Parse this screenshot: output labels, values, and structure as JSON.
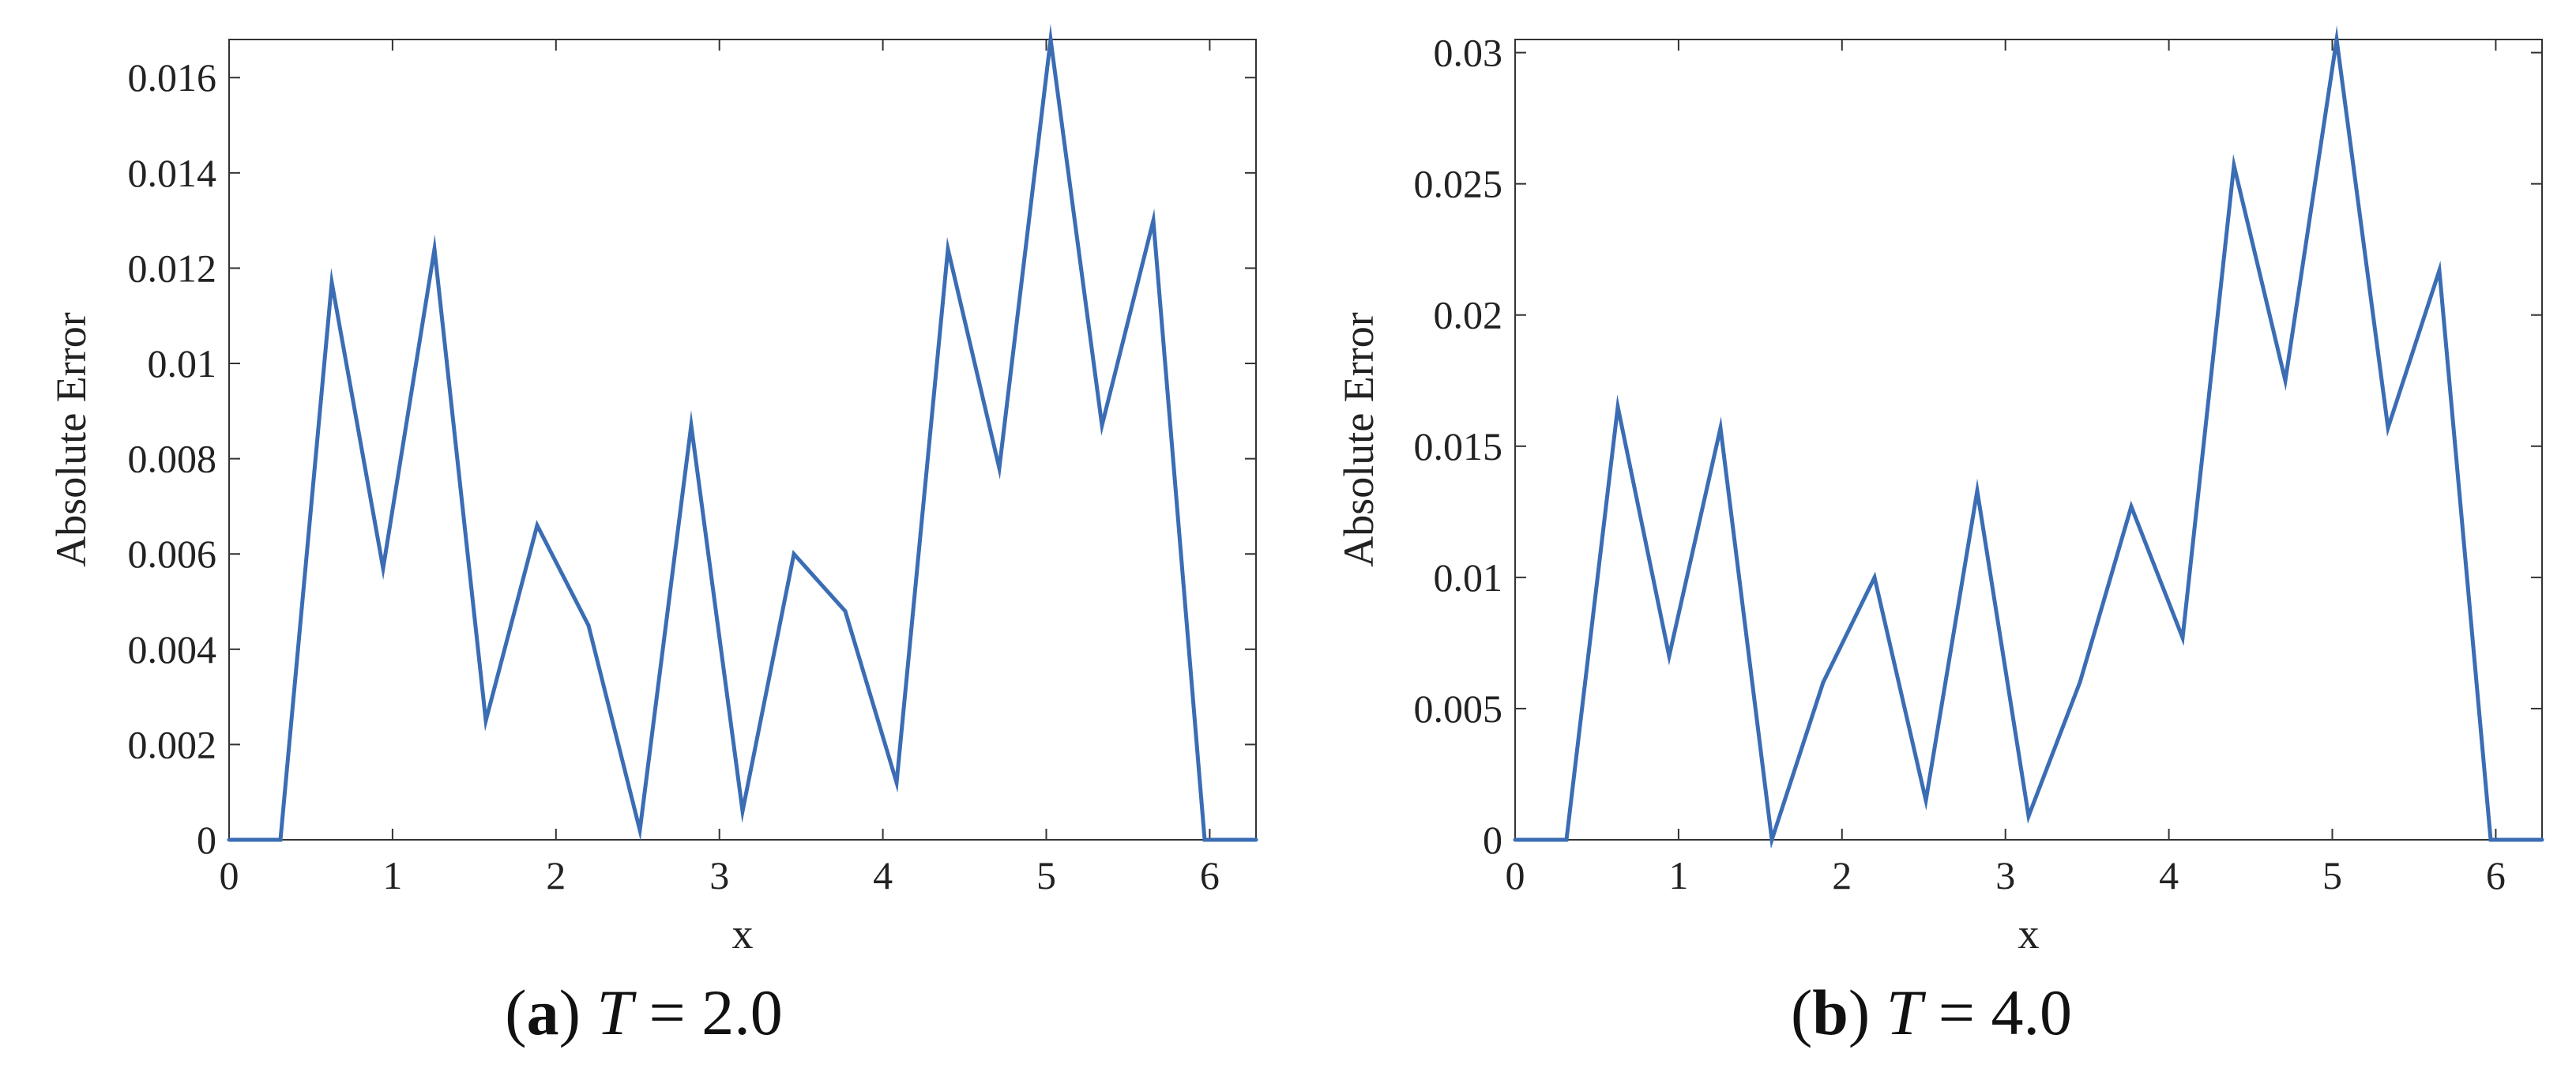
{
  "line_color": "#3b6db4",
  "chart_data": [
    {
      "type": "line",
      "panel_label": "a",
      "caption": "T = 2.0",
      "caption_var": "T",
      "caption_rest": " = 2.0",
      "xlabel": "x",
      "ylabel": "Absolute Error",
      "xlim": [
        0,
        6.2832
      ],
      "ylim": [
        0,
        0.0168
      ],
      "xticks": [
        0,
        1,
        2,
        3,
        4,
        5,
        6
      ],
      "xtick_labels": [
        "0",
        "1",
        "2",
        "3",
        "4",
        "5",
        "6"
      ],
      "yticks": [
        0,
        0.002,
        0.004,
        0.006,
        0.008,
        0.01,
        0.012,
        0.014,
        0.016
      ],
      "ytick_labels": [
        "0",
        "0.002",
        "0.004",
        "0.006",
        "0.008",
        "0.01",
        "0.012",
        "0.014",
        "0.016"
      ],
      "series": [
        {
          "name": "Absolute Error",
          "x": [
            0,
            0.3142,
            0.6283,
            0.9425,
            1.2566,
            1.5708,
            1.885,
            2.1991,
            2.5133,
            2.8274,
            3.1416,
            3.4558,
            3.7699,
            4.0841,
            4.3982,
            4.7124,
            5.0265,
            5.3407,
            5.6549,
            5.969,
            6.2832
          ],
          "y": [
            0,
            0,
            0.0117,
            0.0057,
            0.0124,
            0.0025,
            0.0066,
            0.0045,
            0.0002,
            0.0087,
            0.0006,
            0.006,
            0.0048,
            0.0012,
            0.0124,
            0.0078,
            0.0168,
            0.0087,
            0.013,
            0,
            0
          ]
        }
      ]
    },
    {
      "type": "line",
      "panel_label": "b",
      "caption": "T = 4.0",
      "caption_var": "T",
      "caption_rest": " = 4.0",
      "xlabel": "x",
      "ylabel": "Absolute Error",
      "xlim": [
        0,
        6.2832
      ],
      "ylim": [
        0,
        0.0305
      ],
      "xticks": [
        0,
        1,
        2,
        3,
        4,
        5,
        6
      ],
      "xtick_labels": [
        "0",
        "1",
        "2",
        "3",
        "4",
        "5",
        "6"
      ],
      "yticks": [
        0,
        0.005,
        0.01,
        0.015,
        0.02,
        0.025,
        0.03
      ],
      "ytick_labels": [
        "0",
        "0.005",
        "0.01",
        "0.015",
        "0.02",
        "0.025",
        "0.03"
      ],
      "series": [
        {
          "name": "Absolute Error",
          "x": [
            0,
            0.3142,
            0.6283,
            0.9425,
            1.2566,
            1.5708,
            1.885,
            2.1991,
            2.5133,
            2.8274,
            3.1416,
            3.4558,
            3.7699,
            4.0841,
            4.3982,
            4.7124,
            5.0265,
            5.3407,
            5.6549,
            5.969,
            6.2832
          ],
          "y": [
            0,
            0,
            0.0165,
            0.007,
            0.0157,
            0,
            0.006,
            0.01,
            0.0015,
            0.0133,
            0.0009,
            0.006,
            0.0127,
            0.0077,
            0.0257,
            0.0175,
            0.0305,
            0.0157,
            0.0217,
            0,
            0
          ]
        }
      ]
    }
  ]
}
